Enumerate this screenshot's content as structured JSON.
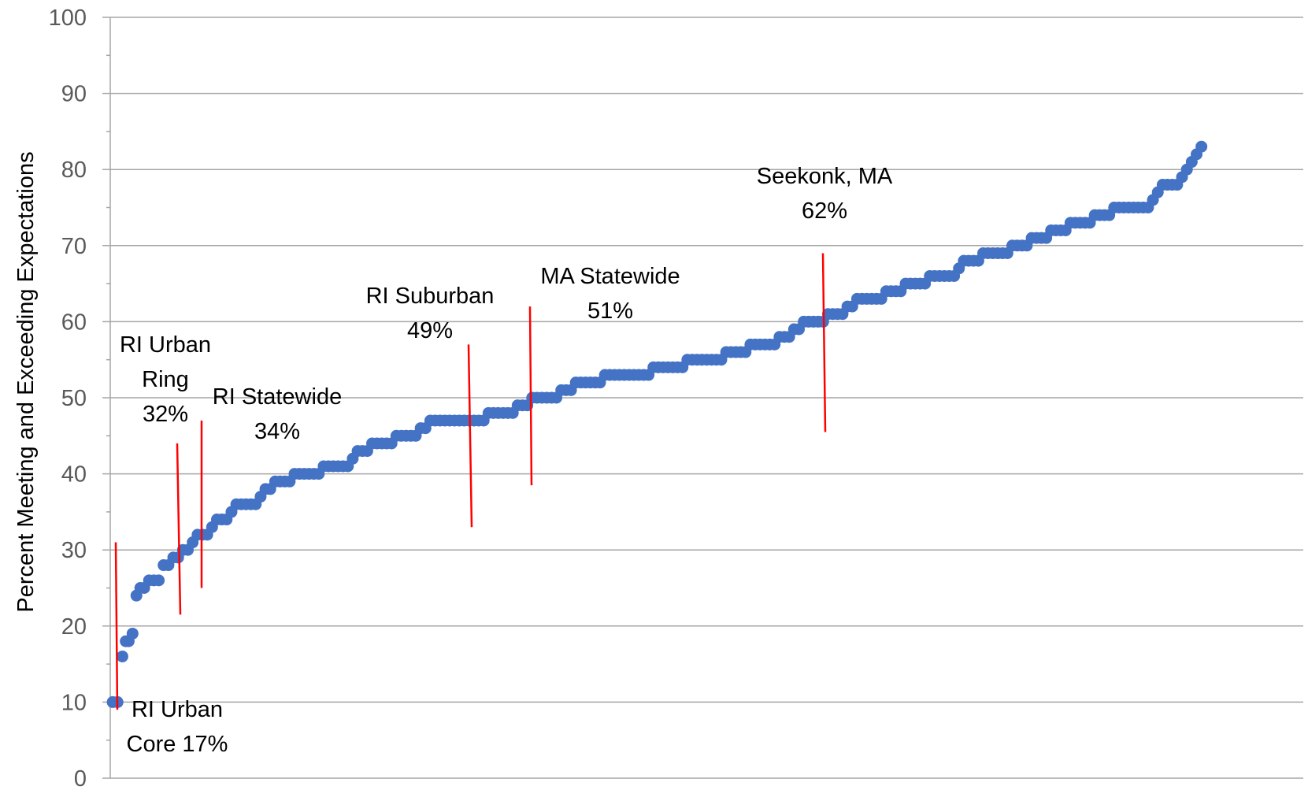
{
  "chart_data": {
    "type": "scatter",
    "title": "",
    "xlabel": "",
    "ylabel": "Percent Meeting and Exceeding  Expectations",
    "ylim": [
      0,
      100
    ],
    "yticks": [
      "0",
      "10",
      "20",
      "30",
      "40",
      "50",
      "60",
      "70",
      "80",
      "90",
      "100"
    ],
    "grid": true,
    "legend": "none",
    "series_color": "#4472C4",
    "marker_color": "#4472C4",
    "annotation_line_color": "#FF0000",
    "points": [
      [
        0.5,
        10
      ],
      [
        1.5,
        10
      ],
      [
        2.5,
        16
      ],
      [
        3.2,
        18
      ],
      [
        3.8,
        18
      ],
      [
        4.6,
        19
      ],
      [
        5.4,
        24
      ],
      [
        6.2,
        25
      ],
      [
        7,
        25
      ],
      [
        8,
        26
      ],
      [
        9,
        26
      ],
      [
        10,
        26
      ],
      [
        11,
        28
      ],
      [
        12,
        28
      ],
      [
        13,
        29
      ],
      [
        14,
        29
      ],
      [
        15,
        30
      ],
      [
        16,
        30
      ],
      [
        17,
        31
      ],
      [
        18,
        32
      ],
      [
        19,
        32
      ],
      [
        20,
        32
      ],
      [
        21,
        33
      ],
      [
        22,
        34
      ],
      [
        23,
        34
      ],
      [
        24,
        34
      ],
      [
        25,
        35
      ],
      [
        26,
        36
      ],
      [
        27,
        36
      ],
      [
        28,
        36
      ],
      [
        29,
        36
      ],
      [
        30,
        36
      ],
      [
        31,
        37
      ],
      [
        32,
        38
      ],
      [
        33,
        38
      ],
      [
        34,
        39
      ],
      [
        35,
        39
      ],
      [
        36,
        39
      ],
      [
        37,
        39
      ],
      [
        38,
        40
      ],
      [
        39,
        40
      ],
      [
        40,
        40
      ],
      [
        41,
        40
      ],
      [
        42,
        40
      ],
      [
        43,
        40
      ],
      [
        44,
        41
      ],
      [
        45,
        41
      ],
      [
        46,
        41
      ],
      [
        47,
        41
      ],
      [
        48,
        41
      ],
      [
        49,
        41
      ],
      [
        50,
        42
      ],
      [
        51,
        43
      ],
      [
        52,
        43
      ],
      [
        53,
        43
      ],
      [
        54,
        44
      ],
      [
        55,
        44
      ],
      [
        56,
        44
      ],
      [
        57,
        44
      ],
      [
        58,
        44
      ],
      [
        59,
        45
      ],
      [
        60,
        45
      ],
      [
        61,
        45
      ],
      [
        62,
        45
      ],
      [
        63,
        45
      ],
      [
        64,
        46
      ],
      [
        65,
        46
      ],
      [
        66,
        47
      ],
      [
        67,
        47
      ],
      [
        68,
        47
      ],
      [
        69,
        47
      ],
      [
        70,
        47
      ],
      [
        71,
        47
      ],
      [
        72,
        47
      ],
      [
        73,
        47
      ],
      [
        74,
        47
      ],
      [
        75,
        47
      ],
      [
        76,
        47
      ],
      [
        77,
        47
      ],
      [
        78,
        48
      ],
      [
        79,
        48
      ],
      [
        80,
        48
      ],
      [
        81,
        48
      ],
      [
        82,
        48
      ],
      [
        83,
        48
      ],
      [
        84,
        49
      ],
      [
        85,
        49
      ],
      [
        86,
        49
      ],
      [
        87,
        50
      ],
      [
        88,
        50
      ],
      [
        89,
        50
      ],
      [
        90,
        50
      ],
      [
        91,
        50
      ],
      [
        92,
        50
      ],
      [
        93,
        51
      ],
      [
        94,
        51
      ],
      [
        95,
        51
      ],
      [
        96,
        52
      ],
      [
        97,
        52
      ],
      [
        98,
        52
      ],
      [
        99,
        52
      ],
      [
        100,
        52
      ],
      [
        101,
        52
      ],
      [
        102,
        53
      ],
      [
        103,
        53
      ],
      [
        104,
        53
      ],
      [
        105,
        53
      ],
      [
        106,
        53
      ],
      [
        107,
        53
      ],
      [
        108,
        53
      ],
      [
        109,
        53
      ],
      [
        110,
        53
      ],
      [
        111,
        53
      ],
      [
        112,
        54
      ],
      [
        113,
        54
      ],
      [
        114,
        54
      ],
      [
        115,
        54
      ],
      [
        116,
        54
      ],
      [
        117,
        54
      ],
      [
        118,
        54
      ],
      [
        119,
        55
      ],
      [
        120,
        55
      ],
      [
        121,
        55
      ],
      [
        122,
        55
      ],
      [
        123,
        55
      ],
      [
        124,
        55
      ],
      [
        125,
        55
      ],
      [
        126,
        55
      ],
      [
        127,
        56
      ],
      [
        128,
        56
      ],
      [
        129,
        56
      ],
      [
        130,
        56
      ],
      [
        131,
        56
      ],
      [
        132,
        57
      ],
      [
        133,
        57
      ],
      [
        134,
        57
      ],
      [
        135,
        57
      ],
      [
        136,
        57
      ],
      [
        137,
        57
      ],
      [
        138,
        58
      ],
      [
        139,
        58
      ],
      [
        140,
        58
      ],
      [
        141,
        59
      ],
      [
        142,
        59
      ],
      [
        143,
        60
      ],
      [
        144,
        60
      ],
      [
        145,
        60
      ],
      [
        146,
        60
      ],
      [
        147,
        60
      ],
      [
        148,
        61
      ],
      [
        149,
        61
      ],
      [
        150,
        61
      ],
      [
        151,
        61
      ],
      [
        152,
        62
      ],
      [
        153,
        62
      ],
      [
        154,
        63
      ],
      [
        155,
        63
      ],
      [
        156,
        63
      ],
      [
        157,
        63
      ],
      [
        158,
        63
      ],
      [
        159,
        63
      ],
      [
        160,
        64
      ],
      [
        161,
        64
      ],
      [
        162,
        64
      ],
      [
        163,
        64
      ],
      [
        164,
        65
      ],
      [
        165,
        65
      ],
      [
        166,
        65
      ],
      [
        167,
        65
      ],
      [
        168,
        65
      ],
      [
        169,
        66
      ],
      [
        170,
        66
      ],
      [
        171,
        66
      ],
      [
        172,
        66
      ],
      [
        173,
        66
      ],
      [
        174,
        66
      ],
      [
        175,
        67
      ],
      [
        176,
        68
      ],
      [
        177,
        68
      ],
      [
        178,
        68
      ],
      [
        179,
        68
      ],
      [
        180,
        69
      ],
      [
        181,
        69
      ],
      [
        182,
        69
      ],
      [
        183,
        69
      ],
      [
        184,
        69
      ],
      [
        185,
        69
      ],
      [
        186,
        70
      ],
      [
        187,
        70
      ],
      [
        188,
        70
      ],
      [
        189,
        70
      ],
      [
        190,
        71
      ],
      [
        191,
        71
      ],
      [
        192,
        71
      ],
      [
        193,
        71
      ],
      [
        194,
        72
      ],
      [
        195,
        72
      ],
      [
        196,
        72
      ],
      [
        197,
        72
      ],
      [
        198,
        73
      ],
      [
        199,
        73
      ],
      [
        200,
        73
      ],
      [
        201,
        73
      ],
      [
        202,
        73
      ],
      [
        203,
        74
      ],
      [
        204,
        74
      ],
      [
        205,
        74
      ],
      [
        206,
        74
      ],
      [
        207,
        75
      ],
      [
        208,
        75
      ],
      [
        209,
        75
      ],
      [
        210,
        75
      ],
      [
        211,
        75
      ],
      [
        212,
        75
      ],
      [
        213,
        75
      ],
      [
        214,
        75
      ],
      [
        215,
        76
      ],
      [
        216,
        77
      ],
      [
        217,
        78
      ],
      [
        218,
        78
      ],
      [
        219,
        78
      ],
      [
        220,
        78
      ],
      [
        221,
        79
      ],
      [
        222,
        80
      ],
      [
        223,
        81
      ],
      [
        224,
        82
      ],
      [
        225,
        83
      ]
    ],
    "annotations": [
      {
        "label_lines": [
          "RI Urban",
          "Core 17%"
        ],
        "x": 1.5,
        "line_y": [
          9,
          31
        ]
      },
      {
        "label_lines": [
          "RI Urban",
          "Ring",
          "32%"
        ],
        "x": 15.2,
        "line_y": [
          21.5,
          44
        ]
      },
      {
        "label_lines": [
          "RI Statewide",
          "34%"
        ],
        "x": 20.2,
        "line_y": [
          25,
          47
        ]
      },
      {
        "label_lines": [
          "RI Suburban",
          "49%"
        ],
        "x": 75.6,
        "line_y": [
          33,
          57
        ]
      },
      {
        "label_lines": [
          "MA Statewide",
          "51%"
        ],
        "x": 87.3,
        "line_y": [
          38.5,
          62
        ]
      },
      {
        "label_lines": [
          "Seekonk, MA",
          "62%"
        ],
        "x": 145.1,
        "line_y": [
          45.5,
          69
        ]
      }
    ]
  }
}
